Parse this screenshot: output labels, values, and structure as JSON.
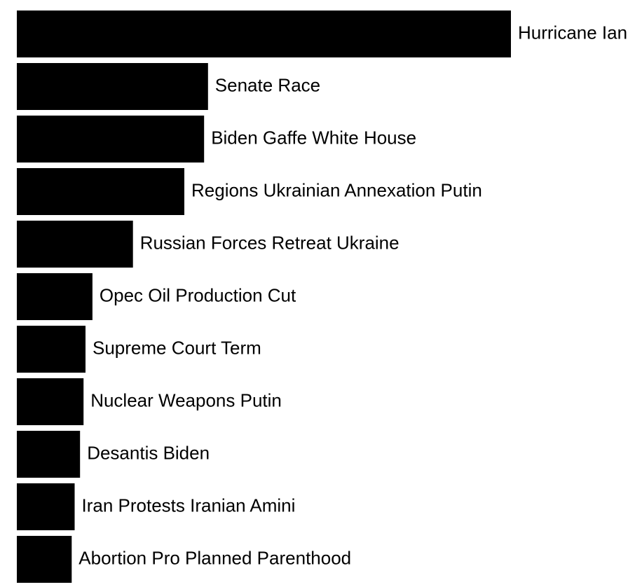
{
  "chart_data": {
    "type": "bar",
    "orientation": "horizontal",
    "title": "",
    "xlabel": "",
    "ylabel": "",
    "categories": [
      "Hurricane Ian",
      "Senate Race",
      "Biden Gaffe White House",
      "Regions Ukrainian Annexation Putin",
      "Russian Forces Retreat Ukraine",
      "Opec Oil Production Cut",
      "Supreme Court Term",
      "Nuclear Weapons Putin",
      "Desantis Biden",
      "Iran Protests Iranian Amini",
      "Abortion Pro Planned Parenthood"
    ],
    "values": [
      100,
      38.7,
      37.9,
      33.9,
      23.5,
      15.3,
      13.9,
      13.5,
      12.8,
      11.7,
      11.1
    ],
    "xlim": [
      0,
      100
    ],
    "grid": false,
    "legend": "none",
    "bar_color": "#000000",
    "label_color": "#000000"
  }
}
